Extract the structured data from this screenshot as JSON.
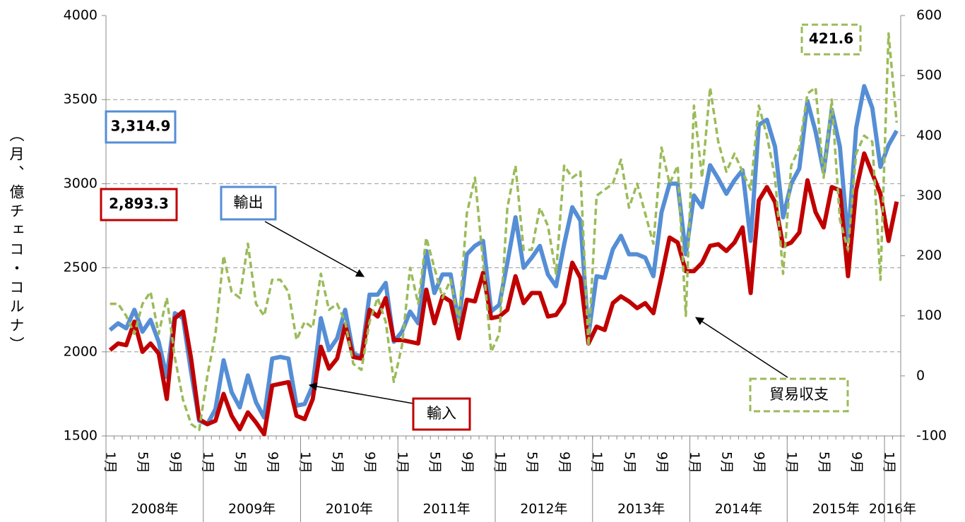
{
  "chart_data": {
    "type": "line",
    "y_label": "（月、億チェコ・コルナ）",
    "categories": [
      "1月",
      null,
      null,
      null,
      "5月",
      null,
      null,
      null,
      "9月",
      null,
      null,
      null,
      "1月",
      null,
      null,
      null,
      "5月",
      null,
      null,
      null,
      "9月",
      null,
      null,
      null,
      "1月",
      null,
      null,
      null,
      "5月",
      null,
      null,
      null,
      "9月",
      null,
      null,
      null,
      "1月",
      null,
      null,
      null,
      "5月",
      null,
      null,
      null,
      "9月",
      null,
      null,
      null,
      "1月",
      null,
      null,
      null,
      "5月",
      null,
      null,
      null,
      "9月",
      null,
      null,
      null,
      "1月",
      null,
      null,
      null,
      "5月",
      null,
      null,
      null,
      "9月",
      null,
      null,
      null,
      "1月",
      null,
      null,
      null,
      "5月",
      null,
      null,
      null,
      "9月",
      null,
      null,
      null,
      "1月",
      null,
      null,
      null,
      "5月",
      null,
      null,
      null,
      "9月",
      null,
      null,
      null,
      "1月",
      null
    ],
    "year_groups": [
      "2008年",
      "2009年",
      "2010年",
      "2011年",
      "2012年",
      "2013年",
      "2014年",
      "2015年",
      "2016年"
    ],
    "ylim": [
      1500,
      4000
    ],
    "yticks": [
      1500,
      2000,
      2500,
      3000,
      3500,
      4000
    ],
    "y2lim": [
      -100,
      600
    ],
    "y2ticks": [
      -100,
      0,
      100,
      200,
      300,
      400,
      500,
      600
    ],
    "grid": true,
    "series": [
      {
        "name": "輸出",
        "color": "#558ed5",
        "dashed": false,
        "values": [
          2130,
          2170,
          2140,
          2250,
          2120,
          2190,
          2060,
          1850,
          2230,
          2200,
          1880,
          1590,
          1570,
          1660,
          1950,
          1760,
          1670,
          1860,
          1700,
          1610,
          1960,
          1970,
          1960,
          1680,
          1690,
          1800,
          2200,
          2010,
          2080,
          2250,
          1990,
          1970,
          2340,
          2340,
          2410,
          2060,
          2120,
          2240,
          2170,
          2600,
          2350,
          2460,
          2460,
          2170,
          2580,
          2630,
          2660,
          2240,
          2280,
          2530,
          2800,
          2500,
          2560,
          2630,
          2460,
          2390,
          2640,
          2860,
          2780,
          2100,
          2450,
          2440,
          2610,
          2690,
          2580,
          2580,
          2560,
          2450,
          2830,
          3000,
          3000,
          2580,
          2930,
          2860,
          3110,
          3030,
          2940,
          3020,
          3080,
          2660,
          3350,
          3380,
          3220,
          2800,
          3000,
          3090,
          3490,
          3310,
          3070,
          3440,
          3220,
          2660,
          3330,
          3580,
          3450,
          3100,
          3230,
          3314.9
        ],
        "value_labels": [
          null,
          null,
          null,
          null,
          null,
          null,
          null,
          null,
          null,
          null,
          null,
          null,
          null,
          null,
          null,
          null,
          null,
          null,
          null,
          null,
          null,
          null,
          null,
          null,
          null,
          null,
          null,
          null,
          null,
          null,
          null,
          null,
          null,
          null,
          null,
          null,
          null,
          null,
          null,
          null,
          null,
          null,
          null,
          null,
          null,
          null,
          null,
          null,
          null,
          null,
          null,
          null,
          null,
          null,
          null,
          null,
          null,
          null,
          null,
          null,
          null,
          null,
          null,
          null,
          null,
          null,
          null,
          null,
          null,
          null,
          null,
          null,
          null,
          null,
          null,
          null,
          null,
          null,
          null,
          null,
          null,
          null,
          null,
          null,
          null,
          null,
          null,
          null,
          null,
          null,
          null,
          null,
          null,
          null,
          null,
          null,
          null,
          "3,314.9"
        ]
      },
      {
        "name": "輸入",
        "color": "#c00000",
        "dashed": false,
        "values": [
          2010,
          2050,
          2040,
          2180,
          2000,
          2050,
          1990,
          1720,
          2200,
          2240,
          1960,
          1600,
          1570,
          1590,
          1750,
          1620,
          1540,
          1640,
          1580,
          1510,
          1800,
          1810,
          1820,
          1620,
          1600,
          1720,
          2030,
          1900,
          1960,
          2160,
          1970,
          1960,
          2250,
          2210,
          2320,
          2070,
          2070,
          2060,
          2050,
          2370,
          2170,
          2330,
          2300,
          2080,
          2310,
          2300,
          2470,
          2200,
          2210,
          2250,
          2450,
          2290,
          2350,
          2350,
          2210,
          2220,
          2290,
          2530,
          2440,
          2050,
          2150,
          2130,
          2290,
          2330,
          2300,
          2260,
          2290,
          2230,
          2450,
          2680,
          2650,
          2480,
          2480,
          2530,
          2630,
          2640,
          2600,
          2650,
          2740,
          2350,
          2900,
          2980,
          2890,
          2630,
          2650,
          2710,
          3020,
          2830,
          2740,
          2980,
          2960,
          2450,
          2960,
          3180,
          3060,
          2940,
          2660,
          2893.3
        ],
        "value_labels": [
          null,
          null,
          null,
          null,
          null,
          null,
          null,
          null,
          null,
          null,
          null,
          null,
          null,
          null,
          null,
          null,
          null,
          null,
          null,
          null,
          null,
          null,
          null,
          null,
          null,
          null,
          null,
          null,
          null,
          null,
          null,
          null,
          null,
          null,
          null,
          null,
          null,
          null,
          null,
          null,
          null,
          null,
          null,
          null,
          null,
          null,
          null,
          null,
          null,
          null,
          null,
          null,
          null,
          null,
          null,
          null,
          null,
          null,
          null,
          null,
          null,
          null,
          null,
          null,
          null,
          null,
          null,
          null,
          null,
          null,
          null,
          null,
          null,
          null,
          null,
          null,
          null,
          null,
          null,
          null,
          null,
          null,
          null,
          null,
          null,
          null,
          null,
          null,
          null,
          null,
          null,
          null,
          null,
          null,
          null,
          null,
          null,
          "2,893.3"
        ]
      },
      {
        "name": "貿易収支",
        "color": "#9bbb59",
        "dashed": true,
        "axis": "y2",
        "values": [
          120,
          120,
          100,
          70,
          120,
          140,
          70,
          130,
          30,
          -40,
          -80,
          -90,
          0,
          70,
          200,
          140,
          130,
          220,
          120,
          100,
          160,
          160,
          140,
          60,
          90,
          80,
          170,
          110,
          120,
          90,
          20,
          10,
          90,
          130,
          90,
          -10,
          50,
          180,
          120,
          230,
          180,
          130,
          160,
          90,
          270,
          330,
          190,
          40,
          70,
          280,
          350,
          210,
          210,
          280,
          250,
          170,
          350,
          330,
          340,
          50,
          300,
          310,
          320,
          360,
          280,
          320,
          270,
          220,
          380,
          320,
          350,
          100,
          450,
          330,
          480,
          390,
          340,
          370,
          340,
          310,
          450,
          400,
          330,
          170,
          350,
          380,
          470,
          480,
          330,
          460,
          260,
          210,
          370,
          400,
          390,
          160,
          570,
          421.6
        ],
        "value_labels": [
          null,
          null,
          null,
          null,
          null,
          null,
          null,
          null,
          null,
          null,
          null,
          null,
          null,
          null,
          null,
          null,
          null,
          null,
          null,
          null,
          null,
          null,
          null,
          null,
          null,
          null,
          null,
          null,
          null,
          null,
          null,
          null,
          null,
          null,
          null,
          null,
          null,
          null,
          null,
          null,
          null,
          null,
          null,
          null,
          null,
          null,
          null,
          null,
          null,
          null,
          null,
          null,
          null,
          null,
          null,
          null,
          null,
          null,
          null,
          null,
          null,
          null,
          null,
          null,
          null,
          null,
          null,
          null,
          null,
          null,
          null,
          null,
          null,
          null,
          null,
          null,
          null,
          null,
          null,
          null,
          null,
          null,
          null,
          null,
          null,
          null,
          null,
          null,
          null,
          null,
          null,
          null,
          null,
          null,
          null,
          null,
          null,
          "421.6"
        ]
      }
    ]
  }
}
